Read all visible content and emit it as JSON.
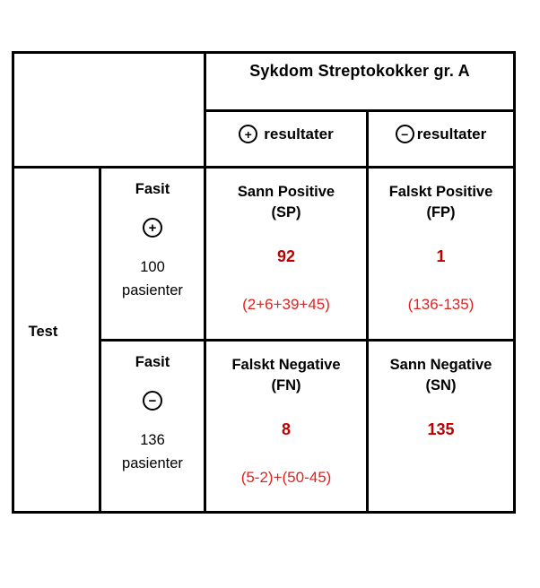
{
  "chart_data": {
    "type": "table",
    "title": "Sykdom Streptokokker gr. A",
    "column_group": {
      "title": "Sykdom Streptokokker gr. A",
      "columns": [
        {
          "sign": "+",
          "label": "resultater"
        },
        {
          "sign": "−",
          "label": "resultater"
        }
      ]
    },
    "row_group": {
      "title": "Test",
      "rows": [
        {
          "label": "Fasit",
          "sign": "+",
          "count": "100",
          "count_unit": "pasienter"
        },
        {
          "label": "Fasit",
          "sign": "−",
          "count": "136",
          "count_unit": "pasienter"
        }
      ]
    },
    "cells": [
      [
        {
          "name": "Sann Positive",
          "abbr": "(SP)",
          "value": "92",
          "formula": "(2+6+39+45)"
        },
        {
          "name": "Falskt Positive",
          "abbr": "(FP)",
          "value": "1",
          "formula": "(136-135)"
        }
      ],
      [
        {
          "name": "Falskt Negative",
          "abbr": "(FN)",
          "value": "8",
          "formula": "(5-2)+(50-45)"
        },
        {
          "name": "Sann Negative",
          "abbr": "(SN)",
          "value": "135",
          "formula": ""
        }
      ]
    ],
    "colors": {
      "border": "#000000",
      "text": "#000000",
      "value_red": "#c00000",
      "formula_red": "#e02321"
    },
    "layout_hint": "2x2 confusion matrix: rows = test result (Fasit + / Fasit −), columns = disease (+ / − resultater)"
  }
}
